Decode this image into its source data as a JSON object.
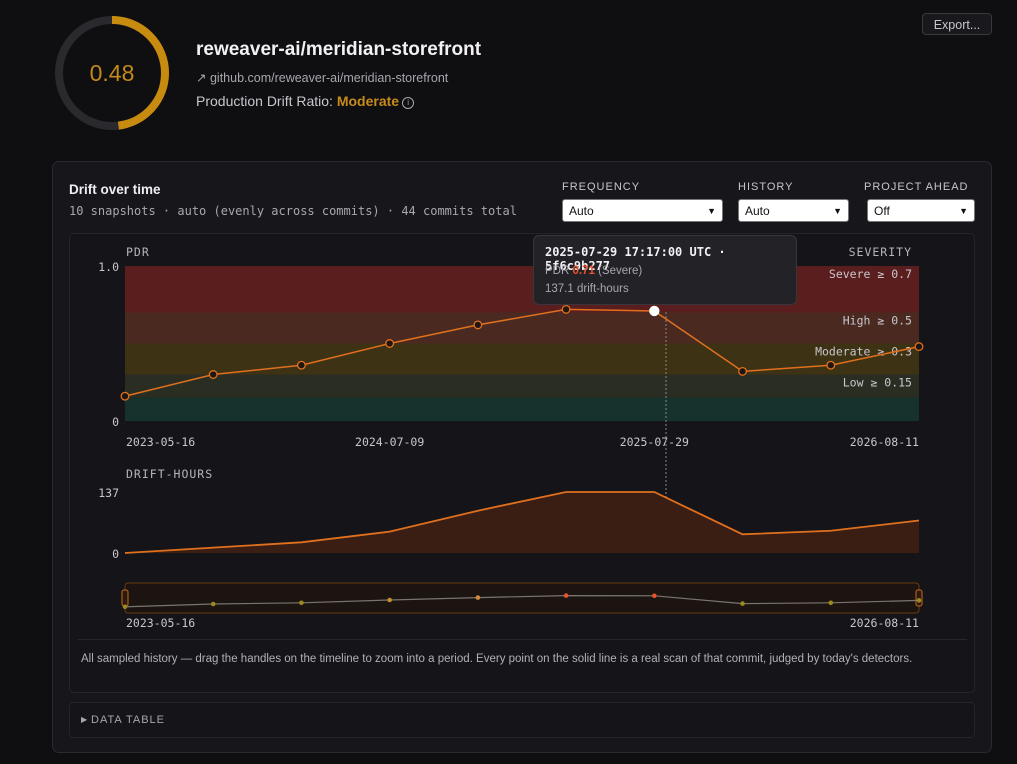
{
  "header": {
    "score": "0.48",
    "score_fraction": 0.48,
    "ring_color": "#c78b10",
    "repo_title": "reweaver-ai/meridian-storefront",
    "repo_link": "github.com/reweaver-ai/meridian-storefront",
    "pdr_label": "Production Drift Ratio:",
    "pdr_severity": "Moderate",
    "info_icon": "info-icon",
    "export_label": "Export..."
  },
  "card": {
    "title": "Drift over time",
    "subtitle": "10 snapshots · auto (evenly across commits) · 44 commits total",
    "controls": {
      "frequency": {
        "label": "FREQUENCY",
        "value": "Auto"
      },
      "history": {
        "label": "HISTORY",
        "value": "Auto"
      },
      "project_ahead": {
        "label": "PROJECT AHEAD",
        "value": "Off"
      }
    },
    "footnote": "All sampled history — drag the handles on the timeline to zoom into a period. Every point on the solid line is a real scan of that commit, judged by today's detectors.",
    "data_table_label": "DATA TABLE"
  },
  "tooltip": {
    "title": "2025-07-29 17:17:00 UTC · 5f6c9b277",
    "pdr_label": "PDR",
    "pdr_value": "0.71",
    "pdr_severity": "(Severe)",
    "drift_hours": "137.1 drift-hours"
  },
  "chart_data": [
    {
      "type": "line",
      "ylabel": "PDR",
      "band_header": "SEVERITY",
      "y_ticks": [
        "1.0",
        "0"
      ],
      "ylim": [
        0,
        1
      ],
      "x_ticks": [
        "2023-05-16",
        "2024-07-09",
        "2025-07-29",
        "2026-08-11"
      ],
      "bands": [
        {
          "label": "Severe ≥ 0.7",
          "from": 0.7,
          "to": 1.0,
          "color": "#5a1e1e"
        },
        {
          "label": "High ≥ 0.5",
          "from": 0.5,
          "to": 0.7,
          "color": "#4a2a20"
        },
        {
          "label": "Moderate ≥ 0.3",
          "from": 0.3,
          "to": 0.5,
          "color": "#3e3214"
        },
        {
          "label": "Low ≥ 0.15",
          "from": 0.15,
          "to": 0.3,
          "color": "#2a2e22"
        },
        {
          "label": "",
          "from": 0,
          "to": 0.15,
          "color": "#15322c"
        }
      ],
      "series": [
        {
          "values": [
            0.16,
            0.3,
            0.36,
            0.5,
            0.62,
            0.72,
            0.71,
            0.32,
            0.36,
            0.48
          ]
        }
      ],
      "highlight_index": 6,
      "line_color": "#e0701e"
    },
    {
      "type": "area",
      "ylabel": "DRIFT-HOURS",
      "y_ticks": [
        "137",
        "0"
      ],
      "ylim": [
        0,
        137
      ],
      "series": [
        {
          "values": [
            0,
            12,
            24,
            48,
            95,
            137,
            137,
            42,
            50,
            73
          ]
        }
      ],
      "line_color": "#e0701e"
    },
    {
      "type": "line",
      "ylabel": "",
      "x_ticks": [
        "2023-05-16",
        "2026-08-11"
      ],
      "series": [
        {
          "values": [
            0.16,
            0.3,
            0.36,
            0.5,
            0.62,
            0.72,
            0.71,
            0.32,
            0.36,
            0.48
          ]
        }
      ],
      "point_colors": [
        "#9a8a20",
        "#9a8a20",
        "#9a8a20",
        "#c0902a",
        "#d08a40",
        "#e8532e",
        "#e8532e",
        "#9a8a20",
        "#9a8a20",
        "#9a8a20"
      ]
    }
  ]
}
